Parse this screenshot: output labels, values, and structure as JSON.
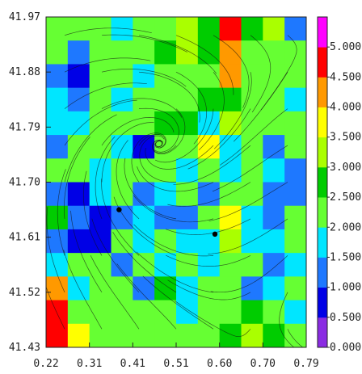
{
  "chart_data": {
    "type": "heatmap",
    "title": "",
    "xlabel": "",
    "ylabel": "",
    "x_ticks": [
      "0.22",
      "0.31",
      "0.41",
      "0.51",
      "0.60",
      "0.70",
      "0.79"
    ],
    "y_ticks": [
      "41.97",
      "41.88",
      "41.79",
      "41.70",
      "41.61",
      "41.52",
      "41.43"
    ],
    "xlim": [
      0.22,
      0.79
    ],
    "ylim": [
      41.43,
      41.97
    ],
    "grid": false,
    "overlay": "streamlines",
    "colorbar": {
      "placement": "right",
      "labels": [
        "0.000",
        "0.500",
        "1.000",
        "1.500",
        "2.000",
        "2.500",
        "3.000",
        "3.500",
        "4.000",
        "4.500",
        "5.000"
      ],
      "range": [
        0,
        5.5
      ],
      "colors": [
        "#8a2be2",
        "#0000e6",
        "#1e78ff",
        "#00e6ff",
        "#66ff33",
        "#00cc00",
        "#aaff00",
        "#ffff00",
        "#ff9900",
        "#ff0000",
        "#ff00ff"
      ]
    },
    "markers": [
      {
        "x": 0.38,
        "y": 41.655
      },
      {
        "x": 0.59,
        "y": 41.615
      }
    ],
    "field": {
      "x0": 0.22,
      "x1": 0.79,
      "y0": 41.43,
      "y1": 41.97,
      "rows": [
        [
          2.2,
          2.3,
          2.1,
          1.6,
          2.3,
          2.2,
          3.0,
          2.6,
          4.6,
          2.6,
          3.4,
          1.4
        ],
        [
          2.0,
          1.2,
          2.1,
          2.3,
          2.0,
          2.5,
          3.1,
          2.5,
          4.3,
          2.1,
          2.2,
          2.0
        ],
        [
          1.3,
          0.8,
          2.0,
          2.1,
          1.6,
          2.2,
          2.4,
          2.1,
          4.2,
          2.3,
          2.0,
          2.2
        ],
        [
          1.6,
          1.2,
          2.0,
          1.6,
          2.1,
          2.1,
          2.4,
          2.6,
          2.6,
          2.0,
          2.3,
          1.8
        ],
        [
          1.9,
          1.6,
          2.3,
          2.0,
          2.1,
          2.5,
          2.6,
          1.6,
          3.4,
          2.3,
          2.2,
          2.2
        ],
        [
          1.4,
          2.2,
          2.0,
          1.8,
          0.8,
          2.2,
          2.1,
          3.6,
          1.6,
          2.1,
          1.2,
          2.1
        ],
        [
          2.1,
          2.2,
          1.9,
          2.0,
          2.3,
          2.1,
          1.6,
          2.0,
          1.8,
          2.0,
          1.6,
          1.4
        ],
        [
          1.4,
          0.7,
          1.9,
          2.2,
          1.3,
          1.6,
          2.2,
          1.4,
          2.4,
          2.0,
          1.3,
          1.2
        ],
        [
          2.5,
          1.3,
          0.7,
          1.1,
          1.6,
          1.1,
          1.4,
          2.4,
          3.6,
          1.8,
          1.3,
          2.2
        ],
        [
          1.2,
          0.9,
          0.8,
          2.0,
          1.6,
          2.2,
          1.5,
          1.6,
          3.3,
          1.9,
          1.6,
          2.2
        ],
        [
          1.5,
          2.2,
          2.0,
          1.3,
          2.1,
          1.9,
          2.2,
          1.6,
          2.4,
          2.1,
          1.2,
          1.9
        ],
        [
          4.0,
          1.5,
          2.2,
          2.0,
          1.2,
          2.5,
          1.8,
          2.2,
          2.0,
          1.4,
          1.5,
          2.1
        ],
        [
          4.6,
          2.2,
          2.1,
          2.3,
          2.3,
          2.1,
          1.8,
          2.0,
          2.4,
          2.5,
          2.2,
          1.8
        ],
        [
          4.8,
          3.6,
          2.2,
          2.1,
          2.0,
          2.2,
          2.1,
          2.2,
          2.6,
          3.4,
          2.6,
          2.2
        ]
      ]
    }
  }
}
